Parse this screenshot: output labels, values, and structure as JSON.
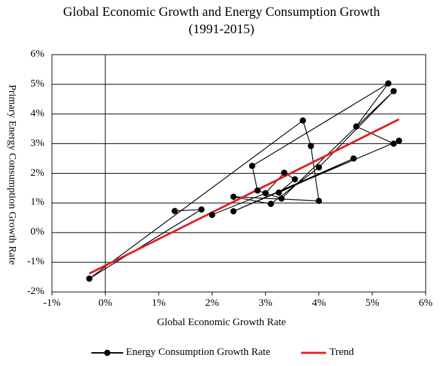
{
  "chart_data": {
    "type": "scatter",
    "title": "Global Economic Growth and Energy Consumption Growth",
    "subtitle": "(1991-2015)",
    "xlabel": "Global Economic Growth Rate",
    "ylabel": "Primary Energy  Consumption Growth Rate",
    "xlim": [
      -1,
      6
    ],
    "ylim": [
      -2,
      6
    ],
    "x_ticks": [
      {
        "value": -1,
        "label": "-1%"
      },
      {
        "value": 0,
        "label": "0%"
      },
      {
        "value": 1,
        "label": "1%"
      },
      {
        "value": 2,
        "label": "2%"
      },
      {
        "value": 3,
        "label": "3%"
      },
      {
        "value": 4,
        "label": "4%"
      },
      {
        "value": 5,
        "label": "5%"
      },
      {
        "value": 6,
        "label": "6%"
      }
    ],
    "y_ticks": [
      {
        "value": -2,
        "label": "-2%"
      },
      {
        "value": -1,
        "label": "-1%"
      },
      {
        "value": 0,
        "label": "0%"
      },
      {
        "value": 1,
        "label": "1%"
      },
      {
        "value": 2,
        "label": "2%"
      },
      {
        "value": 3,
        "label": "3%"
      },
      {
        "value": 4,
        "label": "4%"
      },
      {
        "value": 5,
        "label": "5%"
      },
      {
        "value": 6,
        "label": "6%"
      }
    ],
    "grid": "horizontal",
    "series": [
      {
        "name": "Energy Consumption Growth Rate",
        "color": "#000000",
        "marker": "circle",
        "connected": true,
        "points": [
          {
            "x": 1.3,
            "y": 0.73
          },
          {
            "x": 1.8,
            "y": 0.78
          },
          {
            "x": -0.3,
            "y": -1.55
          },
          {
            "x": 3.7,
            "y": 3.78
          },
          {
            "x": 3.85,
            "y": 2.92
          },
          {
            "x": 4.0,
            "y": 1.07
          },
          {
            "x": 2.4,
            "y": 1.21
          },
          {
            "x": 3.1,
            "y": 0.97
          },
          {
            "x": 4.0,
            "y": 2.2
          },
          {
            "x": 5.4,
            "y": 4.77
          },
          {
            "x": 3.3,
            "y": 1.15
          },
          {
            "x": 2.85,
            "y": 1.42
          },
          {
            "x": 2.75,
            "y": 2.25
          },
          {
            "x": 5.3,
            "y": 5.03
          },
          {
            "x": 4.7,
            "y": 3.58
          },
          {
            "x": 5.4,
            "y": 3.0
          },
          {
            "x": 5.5,
            "y": 3.1
          },
          {
            "x": 2.4,
            "y": 0.72
          },
          {
            "x": 4.65,
            "y": 2.5
          },
          {
            "x": 3.25,
            "y": 1.35
          },
          {
            "x": 3.55,
            "y": 1.8
          },
          {
            "x": 3.35,
            "y": 2.02
          },
          {
            "x": 3.0,
            "y": 1.33
          },
          {
            "x": 2.0,
            "y": 0.6
          }
        ]
      },
      {
        "name": "Trend",
        "color": "#e02020",
        "type": "line",
        "points": [
          {
            "x": -0.3,
            "y": -1.38
          },
          {
            "x": 5.5,
            "y": 3.82
          }
        ]
      }
    ],
    "legend": {
      "position": "bottom",
      "items": [
        "Energy Consumption Growth Rate",
        "Trend"
      ]
    }
  }
}
